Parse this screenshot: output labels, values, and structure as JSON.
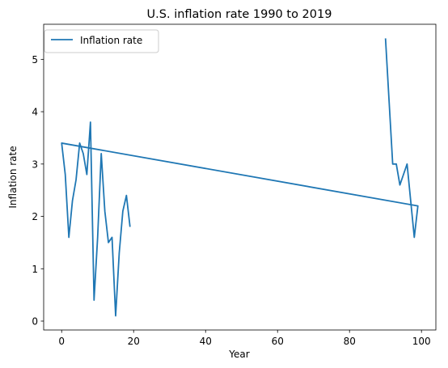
{
  "chart_data": {
    "type": "line",
    "title": "U.S. inflation rate 1990 to 2019",
    "xlabel": "Year",
    "ylabel": "Inflation rate",
    "xlim": [
      -5,
      104
    ],
    "ylim": [
      -0.17,
      5.67
    ],
    "x_ticks": [
      0,
      20,
      40,
      60,
      80,
      100
    ],
    "y_ticks": [
      0,
      1,
      2,
      3,
      4,
      5
    ],
    "grid": false,
    "legend": "upper left",
    "series": [
      {
        "name": "Inflation rate",
        "color": "#1f77b4",
        "x": [
          90,
          91,
          92,
          93,
          94,
          95,
          96,
          97,
          98,
          99,
          0,
          1,
          2,
          3,
          4,
          5,
          6,
          7,
          8,
          9,
          10,
          11,
          12,
          13,
          14,
          15,
          16,
          17,
          18,
          19
        ],
        "y": [
          5.4,
          4.2,
          3.0,
          3.0,
          2.6,
          2.8,
          3.0,
          2.3,
          1.6,
          2.2,
          3.4,
          2.8,
          1.6,
          2.3,
          2.7,
          3.4,
          3.2,
          2.8,
          3.8,
          0.4,
          1.6,
          3.2,
          2.1,
          1.5,
          1.6,
          0.1,
          1.3,
          2.1,
          2.4,
          1.8
        ]
      }
    ]
  }
}
